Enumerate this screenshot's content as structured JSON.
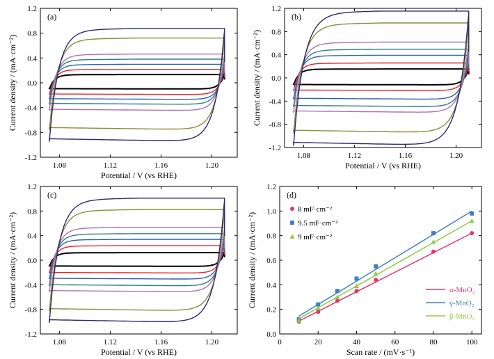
{
  "colors": {
    "black": "#000000",
    "red": "#e8232a",
    "blue": "#2c5fb8",
    "teal": "#2e7f7c",
    "violet": "#b06fb8",
    "olive": "#8b8b3c",
    "navy": "#2a2a6e",
    "alpha": "#e6356e",
    "gamma": "#3f80c4",
    "beta": "#8dcb45"
  },
  "chart_data": [
    {
      "type": "line",
      "panel_label": "(a)",
      "xlabel": "Potential / V (vs RHE)",
      "ylabel": "Current density / (mA·cm⁻²)",
      "xlim": [
        1.065,
        1.22
      ],
      "ylim": [
        -1.2,
        1.2
      ],
      "xticks": [
        "1.08",
        "1.12",
        "1.16",
        "1.20"
      ],
      "yticks": [
        "-1.2",
        "-0.8",
        "-0.4",
        "0.0",
        "0.4",
        "0.8",
        "1.2"
      ],
      "x_range": [
        1.072,
        1.21
      ],
      "loops": [
        {
          "upper": 0.13,
          "lower": -0.1,
          "color_key": "black"
        },
        {
          "upper": 0.21,
          "lower": -0.19,
          "color_key": "red"
        },
        {
          "upper": 0.29,
          "lower": -0.27,
          "color_key": "blue"
        },
        {
          "upper": 0.37,
          "lower": -0.35,
          "color_key": "teal"
        },
        {
          "upper": 0.45,
          "lower": -0.45,
          "color_key": "violet"
        },
        {
          "upper": 0.7,
          "lower": -0.76,
          "color_key": "olive"
        },
        {
          "upper": 0.85,
          "lower": -0.95,
          "color_key": "navy"
        }
      ]
    },
    {
      "type": "line",
      "panel_label": "(b)",
      "xlabel": "Potential / V (vs RHE)",
      "ylabel": "Current density / (mA·cm⁻²)",
      "xlim": [
        1.065,
        1.22
      ],
      "ylim": [
        -1.2,
        1.2
      ],
      "xticks": [
        "1.08",
        "1.12",
        "1.16",
        "1.20"
      ],
      "yticks": [
        "-1.2",
        "-0.8",
        "-0.4",
        "0.0",
        "0.4",
        "0.8",
        "1.2"
      ],
      "x_range": [
        1.072,
        1.21
      ],
      "loops": [
        {
          "upper": 0.15,
          "lower": -0.12,
          "color_key": "black"
        },
        {
          "upper": 0.25,
          "lower": -0.22,
          "color_key": "red"
        },
        {
          "upper": 0.38,
          "lower": -0.37,
          "color_key": "blue"
        },
        {
          "upper": 0.48,
          "lower": -0.5,
          "color_key": "teal"
        },
        {
          "upper": 0.6,
          "lower": -0.6,
          "color_key": "violet"
        },
        {
          "upper": 0.92,
          "lower": -0.95,
          "color_key": "olive"
        },
        {
          "upper": 1.12,
          "lower": -1.17,
          "color_key": "navy"
        }
      ]
    },
    {
      "type": "line",
      "panel_label": "(c)",
      "xlabel": "Potential / V (vs RHE)",
      "ylabel": "Current density / (mA·cm⁻²)",
      "xlim": [
        1.065,
        1.22
      ],
      "ylim": [
        -1.2,
        1.2
      ],
      "xticks": [
        "1.08",
        "1.12",
        "1.16",
        "1.20"
      ],
      "yticks": [
        "-1.2",
        "-0.8",
        "-0.4",
        "0.0",
        "0.4",
        "0.8",
        "1.2"
      ],
      "x_range": [
        1.072,
        1.21
      ],
      "loops": [
        {
          "upper": 0.12,
          "lower": -0.1,
          "color_key": "black"
        },
        {
          "upper": 0.23,
          "lower": -0.21,
          "color_key": "red"
        },
        {
          "upper": 0.33,
          "lower": -0.31,
          "color_key": "blue"
        },
        {
          "upper": 0.42,
          "lower": -0.42,
          "color_key": "teal"
        },
        {
          "upper": 0.52,
          "lower": -0.52,
          "color_key": "violet"
        },
        {
          "upper": 0.8,
          "lower": -0.83,
          "color_key": "olive"
        },
        {
          "upper": 0.98,
          "lower": -1.02,
          "color_key": "navy"
        }
      ]
    },
    {
      "type": "scatter",
      "panel_label": "(d)",
      "xlabel": "Scan rate / (mV·s⁻¹)",
      "ylabel": "Current density / (mA·cm⁻²)",
      "xlim": [
        0,
        105
      ],
      "ylim": [
        0,
        1.2
      ],
      "xticks": [
        "0",
        "20",
        "40",
        "60",
        "80",
        "100"
      ],
      "yticks": [
        "0.0",
        "0.2",
        "0.4",
        "0.6",
        "0.8",
        "1.0",
        "1.2"
      ],
      "annotations": [
        "8 mF·cm⁻²",
        "9.5 mF·cm⁻²",
        "9 mF·cm⁻²"
      ],
      "series": [
        {
          "name": "α-MnO₂",
          "marker": "circle",
          "color_key": "alpha",
          "x": [
            10,
            20,
            30,
            40,
            50,
            80,
            100
          ],
          "y": [
            0.1,
            0.18,
            0.27,
            0.35,
            0.44,
            0.67,
            0.82
          ],
          "fit": [
            [
              10,
              0.105
            ],
            [
              100,
              0.82
            ]
          ]
        },
        {
          "name": "γ-MnO₂",
          "marker": "square",
          "color_key": "gamma",
          "x": [
            10,
            20,
            30,
            40,
            50,
            80,
            100
          ],
          "y": [
            0.12,
            0.24,
            0.35,
            0.45,
            0.55,
            0.82,
            0.98
          ],
          "fit": [
            [
              10,
              0.145
            ],
            [
              100,
              1.0
            ]
          ]
        },
        {
          "name": "β-MnO₂",
          "marker": "triangle",
          "color_key": "beta",
          "x": [
            10,
            20,
            30,
            40,
            50,
            80,
            100
          ],
          "y": [
            0.11,
            0.21,
            0.3,
            0.39,
            0.49,
            0.75,
            0.92
          ],
          "fit": [
            [
              10,
              0.125
            ],
            [
              100,
              0.92
            ]
          ]
        }
      ]
    }
  ]
}
